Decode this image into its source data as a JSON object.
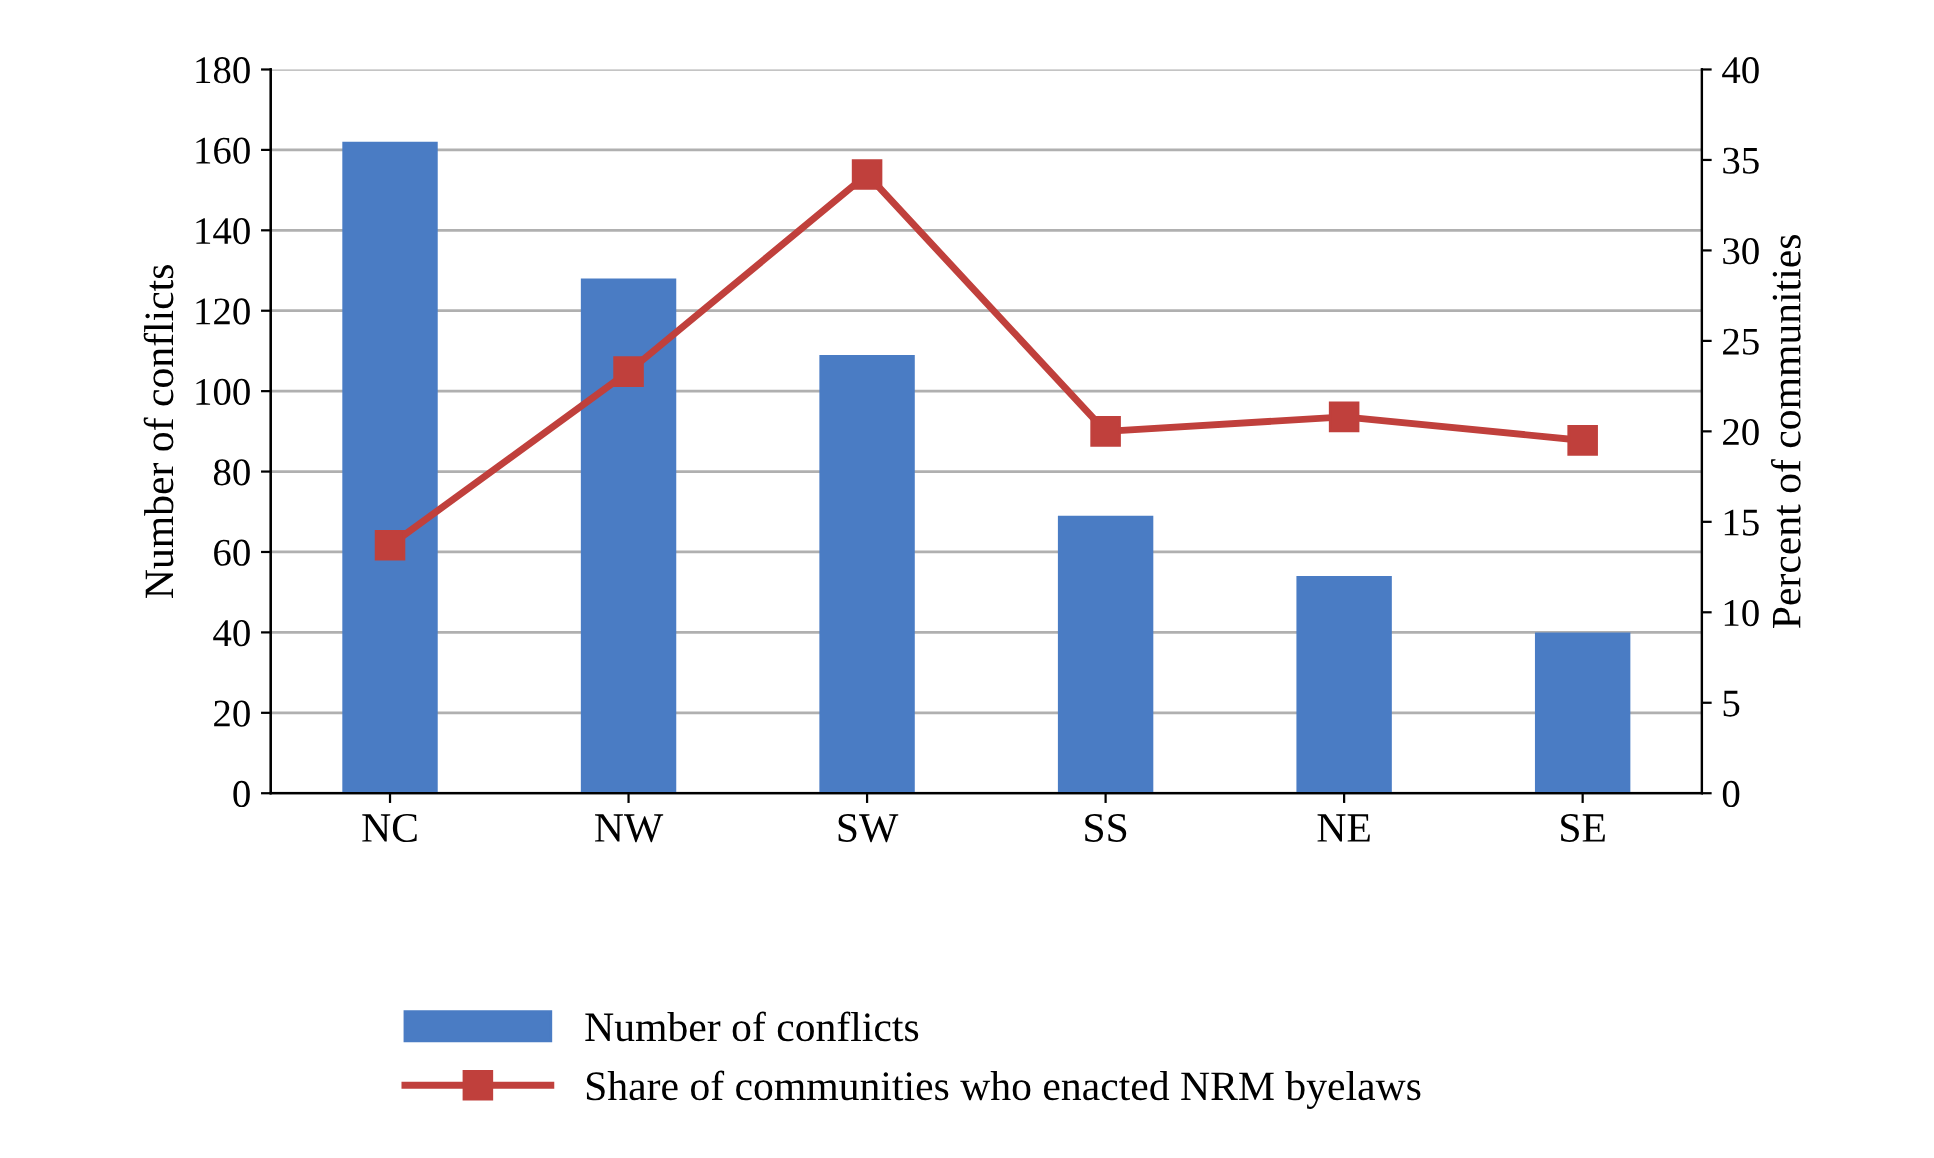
{
  "chart_data": {
    "type": "bar",
    "categories": [
      "NC",
      "NW",
      "SW",
      "SS",
      "NE",
      "SE"
    ],
    "ylabel": "Number of conflicts",
    "y2label": "Percent of communities",
    "series": [
      {
        "name": "Number of conflicts",
        "color": "#4a7cc4",
        "values": [
          162,
          128,
          109,
          69,
          54,
          40
        ]
      },
      {
        "name": "Share of communities who enacted NRM byelaws",
        "type": "line",
        "axis": "y2",
        "color": "#c0403c",
        "marker": "square",
        "values": [
          13.7,
          23.3,
          34.2,
          20,
          20.8,
          19.5
        ]
      }
    ],
    "ylim": [
      0,
      180
    ],
    "yticks": [
      0,
      20,
      40,
      60,
      80,
      100,
      120,
      140,
      160,
      180
    ],
    "y2lim": [
      0,
      40
    ],
    "y2ticks": [
      0,
      5,
      10,
      15,
      20,
      25,
      30,
      35,
      40
    ],
    "grid": "y",
    "legend": "bottom"
  }
}
